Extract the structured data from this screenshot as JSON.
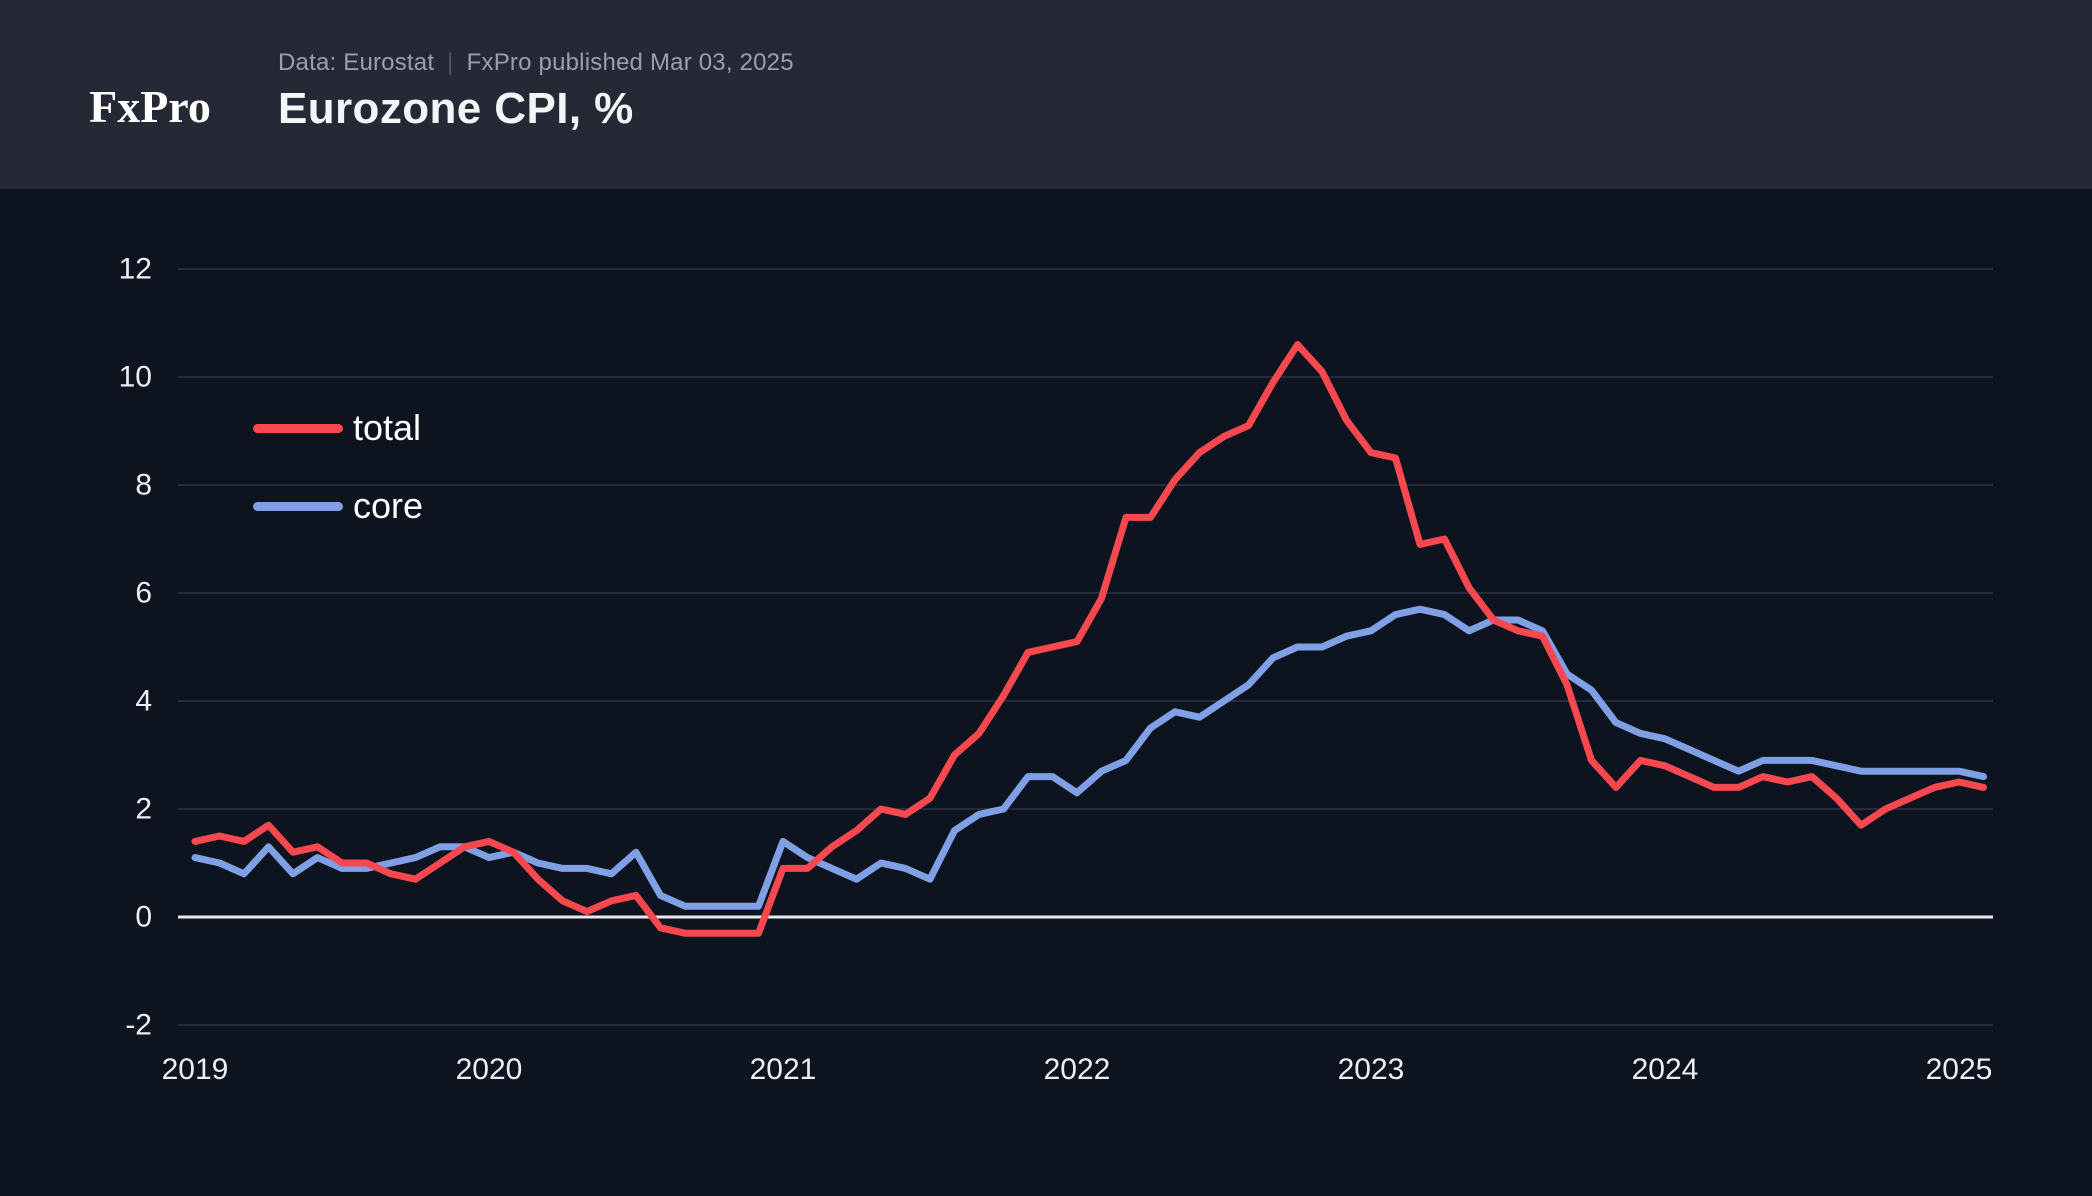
{
  "header": {
    "logo_text": "FxPro",
    "source_label": "Data: Eurostat",
    "separator": "|",
    "published_label": "FxPro published Mar 03, 2025",
    "title": "Eurozone CPI, %"
  },
  "colors": {
    "header_bg": "#262935",
    "chart_bg": "#0d131f",
    "logo_red": "#ec1312",
    "total_red": "#f7474f",
    "core_blue": "#7fa0e4",
    "grid": "#252b3a",
    "zero_line": "#e8eaee",
    "axis_text": "#eceef2",
    "muted_text": "#9aa0ab"
  },
  "chart_data": {
    "type": "line",
    "title": "Eurozone CPI, %",
    "x_monthly_start": "2019-01",
    "x_monthly_end": "2025-02",
    "x_tick_labels": [
      "2019",
      "2020",
      "2021",
      "2022",
      "2023",
      "2024",
      "2025"
    ],
    "y_ticks": [
      -2,
      0,
      2,
      4,
      6,
      8,
      10,
      12
    ],
    "ylim": [
      -2,
      12
    ],
    "grid": true,
    "legend_position": "upper-left-inside",
    "series": [
      {
        "name": "total",
        "color": "#f7474f",
        "values": [
          1.4,
          1.5,
          1.4,
          1.7,
          1.2,
          1.3,
          1.0,
          1.0,
          0.8,
          0.7,
          1.0,
          1.3,
          1.4,
          1.2,
          0.7,
          0.3,
          0.1,
          0.3,
          0.4,
          -0.2,
          -0.3,
          -0.3,
          -0.3,
          -0.3,
          0.9,
          0.9,
          1.3,
          1.6,
          2.0,
          1.9,
          2.2,
          3.0,
          3.4,
          4.1,
          4.9,
          5.0,
          5.1,
          5.9,
          7.4,
          7.4,
          8.1,
          8.6,
          8.9,
          9.1,
          9.9,
          10.6,
          10.1,
          9.2,
          8.6,
          8.5,
          6.9,
          7.0,
          6.1,
          5.5,
          5.3,
          5.2,
          4.3,
          2.9,
          2.4,
          2.9,
          2.8,
          2.6,
          2.4,
          2.4,
          2.6,
          2.5,
          2.6,
          2.2,
          1.7,
          2.0,
          2.2,
          2.4,
          2.5,
          2.4
        ]
      },
      {
        "name": "core",
        "color": "#7fa0e4",
        "values": [
          1.1,
          1.0,
          0.8,
          1.3,
          0.8,
          1.1,
          0.9,
          0.9,
          1.0,
          1.1,
          1.3,
          1.3,
          1.1,
          1.2,
          1.0,
          0.9,
          0.9,
          0.8,
          1.2,
          0.4,
          0.2,
          0.2,
          0.2,
          0.2,
          1.4,
          1.1,
          0.9,
          0.7,
          1.0,
          0.9,
          0.7,
          1.6,
          1.9,
          2.0,
          2.6,
          2.6,
          2.3,
          2.7,
          2.9,
          3.5,
          3.8,
          3.7,
          4.0,
          4.3,
          4.8,
          5.0,
          5.0,
          5.2,
          5.3,
          5.6,
          5.7,
          5.6,
          5.3,
          5.5,
          5.5,
          5.3,
          4.5,
          4.2,
          3.6,
          3.4,
          3.3,
          3.1,
          2.9,
          2.7,
          2.9,
          2.9,
          2.9,
          2.8,
          2.7,
          2.7,
          2.7,
          2.7,
          2.7,
          2.6
        ]
      }
    ]
  }
}
